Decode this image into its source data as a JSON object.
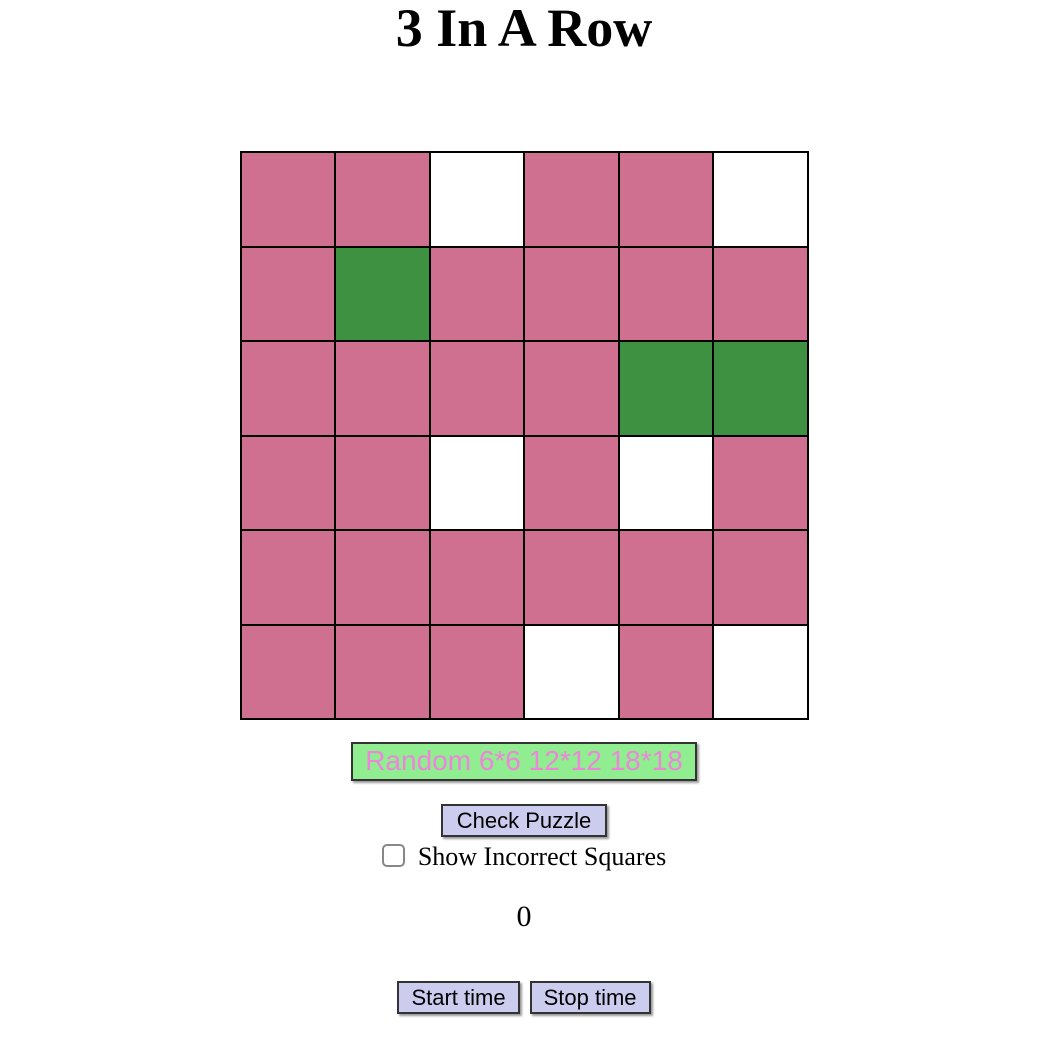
{
  "page": {
    "title": "3 In A Row"
  },
  "grid": {
    "rows": 6,
    "cols": 6,
    "cells": [
      [
        "pink",
        "pink",
        "white",
        "pink",
        "pink",
        "white"
      ],
      [
        "pink",
        "green",
        "pink",
        "pink",
        "pink",
        "pink"
      ],
      [
        "pink",
        "pink",
        "pink",
        "pink",
        "green",
        "green"
      ],
      [
        "pink",
        "pink",
        "white",
        "pink",
        "white",
        "pink"
      ],
      [
        "pink",
        "pink",
        "pink",
        "pink",
        "pink",
        "pink"
      ],
      [
        "pink",
        "pink",
        "pink",
        "white",
        "pink",
        "white"
      ]
    ]
  },
  "controls": {
    "random_button": "Random 6*6 12*12 18*18",
    "check_button": "Check Puzzle",
    "show_incorrect_label": "Show Incorrect Squares",
    "checkbox_checked": false,
    "counter": "0",
    "start_button": "Start time",
    "stop_button": "Stop time"
  },
  "colors": {
    "cell_pink": "#CF7090",
    "cell_green": "#3E9140",
    "cell_white": "#FFFFFF",
    "button_bg": "#CCCCEE",
    "button_border": "#333333",
    "random_bg": "#90EE90",
    "random_text": "#EE85DB",
    "page_bg": "#FFFFFF",
    "text": "#000000"
  }
}
